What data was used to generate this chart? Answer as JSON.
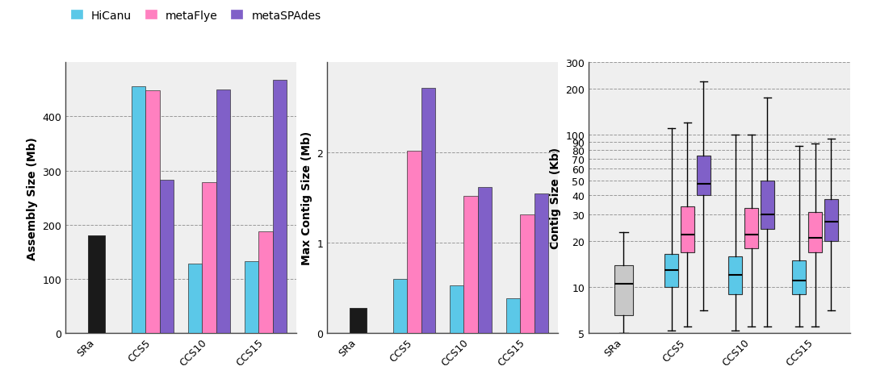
{
  "categories": [
    "SRa",
    "CCS5",
    "CCS10",
    "CCS15"
  ],
  "bar1_ylabel": "Assembly Size (Mb)",
  "bar2_ylabel": "Max Contig Size (Mb)",
  "box_ylabel": "Contig Size (Kb)",
  "legend_labels": [
    "HiCanu",
    "metaFlye",
    "metaSPAdes"
  ],
  "colors": {
    "HiCanu": "#5BC8E8",
    "metaFlye": "#FF80C0",
    "metaSPAdes": "#8060C8",
    "SRa_black": "#1a1a1a",
    "SRa_gray": "#C8C8C8"
  },
  "assembly_size": {
    "SRa": [
      null,
      null,
      180
    ],
    "CCS5": [
      455,
      448,
      283
    ],
    "CCS10": [
      128,
      278,
      450
    ],
    "CCS15": [
      133,
      188,
      468
    ]
  },
  "max_contig_size": {
    "SRa": [
      null,
      null,
      0.28
    ],
    "CCS5": [
      0.6,
      2.02,
      2.72
    ],
    "CCS10": [
      0.53,
      1.52,
      1.62
    ],
    "CCS15": [
      0.38,
      1.31,
      1.55
    ]
  },
  "boxplot_data": {
    "SRa": {
      "SRa": {
        "whislo": 5.0,
        "q1": 6.5,
        "med": 10.5,
        "q3": 14.0,
        "whishi": 23.0
      }
    },
    "CCS5": {
      "HiCanu": {
        "whislo": 5.2,
        "q1": 10.0,
        "med": 13.0,
        "q3": 16.5,
        "whishi": 110.0
      },
      "metaFlye": {
        "whislo": 5.5,
        "q1": 17.0,
        "med": 22.0,
        "q3": 34.0,
        "whishi": 120.0
      },
      "metaSPAdes": {
        "whislo": 7.0,
        "q1": 40.0,
        "med": 48.0,
        "q3": 73.0,
        "whishi": 225.0
      }
    },
    "CCS10": {
      "HiCanu": {
        "whislo": 5.2,
        "q1": 9.0,
        "med": 12.0,
        "q3": 16.0,
        "whishi": 100.0
      },
      "metaFlye": {
        "whislo": 5.5,
        "q1": 18.0,
        "med": 22.0,
        "q3": 33.0,
        "whishi": 100.0
      },
      "metaSPAdes": {
        "whislo": 5.5,
        "q1": 24.0,
        "med": 30.0,
        "q3": 50.0,
        "whishi": 175.0
      }
    },
    "CCS15": {
      "HiCanu": {
        "whislo": 5.5,
        "q1": 9.0,
        "med": 11.0,
        "q3": 15.0,
        "whishi": 85.0
      },
      "metaFlye": {
        "whislo": 5.5,
        "q1": 17.0,
        "med": 21.0,
        "q3": 31.0,
        "whishi": 88.0
      },
      "metaSPAdes": {
        "whislo": 7.0,
        "q1": 20.0,
        "med": 27.0,
        "q3": 38.0,
        "whishi": 95.0
      }
    }
  },
  "bg_color": "#EFEFEF",
  "grid_color": "#999999",
  "bar1_ylim": [
    0,
    500
  ],
  "bar1_yticks": [
    0,
    100,
    200,
    300,
    400
  ],
  "bar2_ylim": [
    0,
    3.0
  ],
  "bar2_yticks": [
    0,
    1,
    2
  ],
  "box_yticks": [
    5,
    10,
    20,
    30,
    40,
    50,
    60,
    70,
    80,
    90,
    100,
    200,
    300
  ]
}
